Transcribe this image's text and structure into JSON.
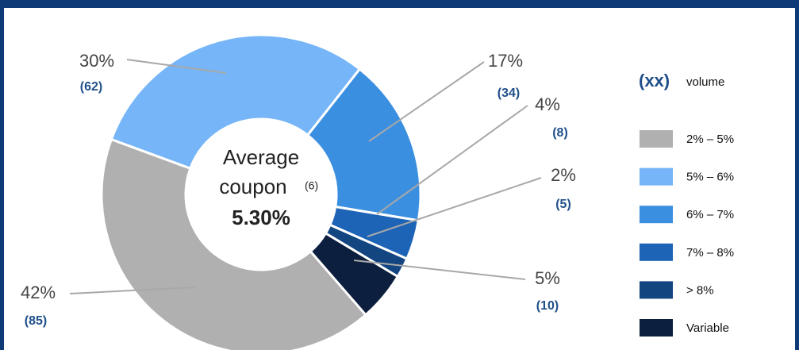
{
  "chart_data": {
    "type": "donut",
    "categories": [
      "2% – 5%",
      "5% – 6%",
      "6% – 7%",
      "7% – 8%",
      "> 8%",
      "Variable"
    ],
    "values": [
      42,
      30,
      17,
      4,
      2,
      5
    ],
    "value_labels": [
      "42%",
      "30%",
      "17%",
      "4%",
      "2%",
      "5%"
    ],
    "volume_labels": [
      "(85)",
      "(62)",
      "(34)",
      "(8)",
      "(5)",
      "(10)"
    ],
    "colors": [
      "#b0b0b0",
      "#75b5f8",
      "#3b8fe0",
      "#1d63b6",
      "#134581",
      "#0c1f3e"
    ],
    "center_text": {
      "line1": "Average",
      "line2": "coupon",
      "note": "(6)",
      "value": "5.30%"
    },
    "legend_title": {
      "key": "(xx)",
      "text": "volume"
    }
  }
}
